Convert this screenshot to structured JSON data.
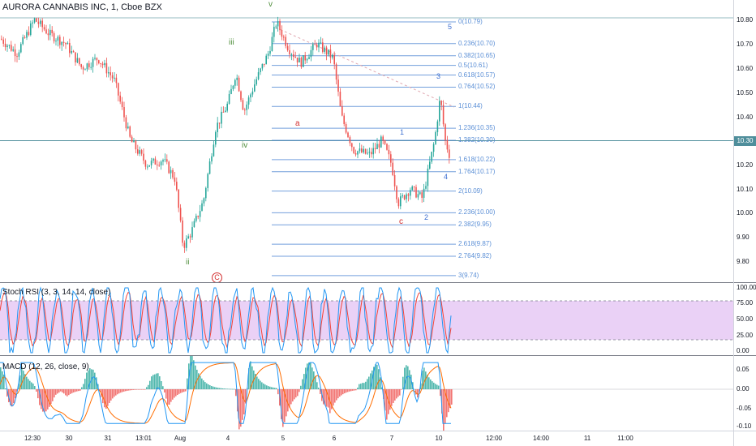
{
  "symbol_title": "AURORA CANNABIS INC, 1, Cboe BZX",
  "current_price_tag": "10.30",
  "price_axis": [
    "10.80",
    "10.70",
    "10.60",
    "10.50",
    "10.40",
    "10.30",
    "10.20",
    "10.10",
    "10.00",
    "9.90",
    "9.80"
  ],
  "time_axis": [
    "12:30",
    "30",
    "31",
    "13:01",
    "Aug",
    "4",
    "5",
    "6",
    "7",
    "10",
    "12:00",
    "14:00",
    "11",
    "11:00"
  ],
  "fib_levels": [
    {
      "label": "0(10.79)",
      "price": 10.79
    },
    {
      "label": "0.236(10.70)",
      "price": 10.7
    },
    {
      "label": "0.382(10.65)",
      "price": 10.65
    },
    {
      "label": "0.5(10.61)",
      "price": 10.61
    },
    {
      "label": "0.618(10.57)",
      "price": 10.57
    },
    {
      "label": "0.764(10.52)",
      "price": 10.52
    },
    {
      "label": "1(10.44)",
      "price": 10.44
    },
    {
      "label": "1.236(10.35)",
      "price": 10.35
    },
    {
      "label": "1.382(10.30)",
      "price": 10.3
    },
    {
      "label": "1.618(10.22)",
      "price": 10.22
    },
    {
      "label": "1.764(10.17)",
      "price": 10.17
    },
    {
      "label": "2(10.09)",
      "price": 10.09
    },
    {
      "label": "2.236(10.00)",
      "price": 10.0
    },
    {
      "label": "2.382(9.95)",
      "price": 9.95
    },
    {
      "label": "2.618(9.87)",
      "price": 9.87
    },
    {
      "label": "2.764(9.82)",
      "price": 9.82
    },
    {
      "label": "3(9.74)",
      "price": 9.74
    }
  ],
  "wave_labels": {
    "green": [
      "iii",
      "iv",
      "v",
      "ii"
    ],
    "red": [
      "a",
      "c",
      "C"
    ],
    "blue": [
      "1",
      "2",
      "3",
      "4",
      "5"
    ]
  },
  "stoch_rsi": {
    "title": "Stoch RSI (3, 3, 14, 14, close)",
    "axis": [
      "100.00",
      "75.00",
      "50.00",
      "25.00",
      "0.00"
    ],
    "band_upper": 80,
    "band_lower": 20
  },
  "macd": {
    "title": "MACD (12, 26, close, 9)",
    "axis": [
      "0.05",
      "0.00",
      "-0.05",
      "-0.10"
    ]
  },
  "colors": {
    "up": "#26a69a",
    "down": "#ef5350",
    "fib": "#5b8fd6",
    "rsi_band": "#e6c9f5",
    "k_line": "#2196f3",
    "d_line": "#f44336",
    "price_line": "#4f8e9b"
  }
}
